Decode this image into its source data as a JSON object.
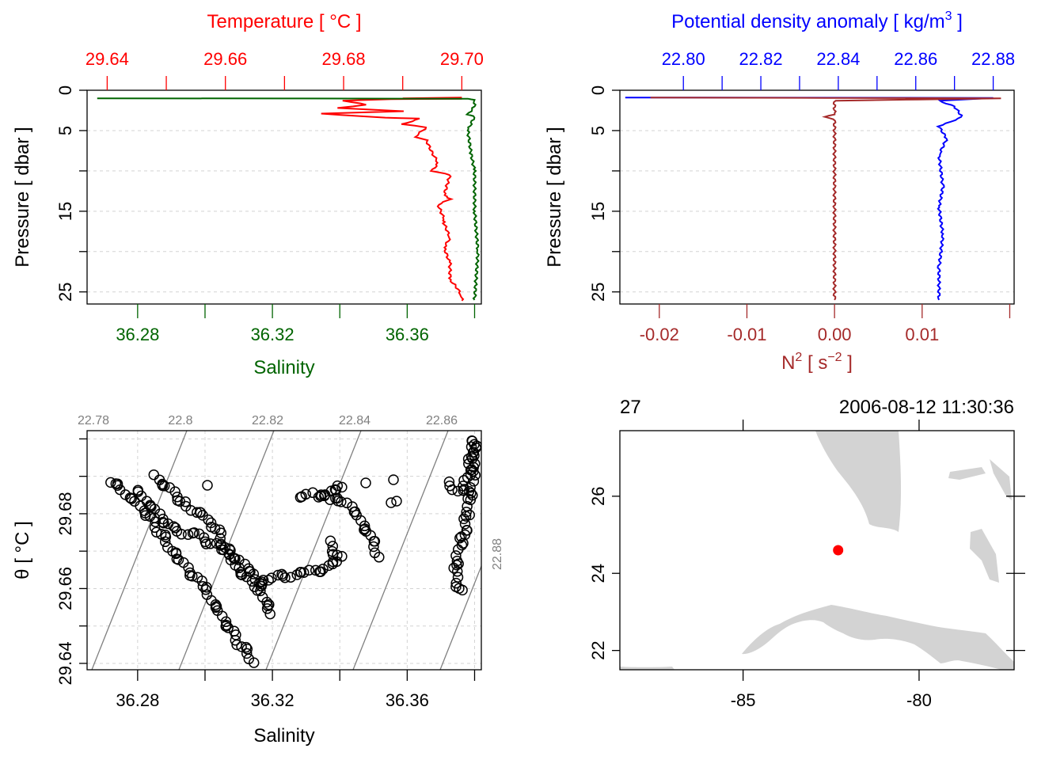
{
  "colors": {
    "temperature": "#ff0000",
    "salinity": "#006400",
    "density": "#0000ff",
    "n2": "#a52a2a",
    "land": "#d3d3d3",
    "station": "#ff0000",
    "grid": "#d3d3d3",
    "isopycnal": "#808080"
  },
  "chart_data": [
    {
      "id": "ts-profile",
      "type": "line",
      "top_axis": {
        "label_text": "Temperature [ °C ]",
        "ticks": [
          "29.64",
          "29.66",
          "29.68",
          "29.70"
        ],
        "range": [
          29.6366,
          29.7033
        ]
      },
      "bottom_axis": {
        "label": "Salinity",
        "ticks": [
          "36.28",
          "36.32",
          "36.36"
        ],
        "range": [
          36.265,
          36.382
        ]
      },
      "ylabel": "Pressure [ dbar ]",
      "yticks": [
        "0",
        "5",
        "15",
        "25"
      ],
      "ylim": [
        0,
        26.5
      ],
      "grid": true,
      "series": [
        {
          "role": "temperature",
          "points": [
            [
              29.7,
              0.9
            ],
            [
              29.69,
              1.0
            ],
            [
              29.7,
              1.05
            ],
            [
              29.688,
              1.1
            ],
            [
              29.68,
              1.3
            ],
            [
              29.684,
              1.8
            ],
            [
              29.679,
              2.2
            ],
            [
              29.69,
              2.6
            ],
            [
              29.676,
              2.9
            ],
            [
              29.687,
              3.4
            ],
            [
              29.693,
              3.5
            ],
            [
              29.69,
              4.2
            ],
            [
              29.694,
              4.6
            ],
            [
              29.692,
              5.8
            ],
            [
              29.694,
              6.2
            ],
            [
              29.695,
              7.8
            ],
            [
              29.696,
              9.0
            ],
            [
              29.695,
              10.0
            ],
            [
              29.698,
              10.5
            ],
            [
              29.697,
              13.0
            ],
            [
              29.698,
              13.5
            ],
            [
              29.696,
              14.2
            ],
            [
              29.697,
              16.0
            ],
            [
              29.697,
              16.5
            ],
            [
              29.698,
              18.3
            ],
            [
              29.697,
              19.5
            ],
            [
              29.698,
              21.5
            ],
            [
              29.698,
              23.5
            ],
            [
              29.699,
              24.3
            ],
            [
              29.7,
              25.5
            ],
            [
              29.7,
              26.1
            ]
          ]
        },
        {
          "role": "salinity",
          "points": [
            [
              36.268,
              1.0
            ],
            [
              36.378,
              1.05
            ],
            [
              36.38,
              1.2
            ],
            [
              36.38,
              2.0
            ],
            [
              36.378,
              3.0
            ],
            [
              36.38,
              3.2
            ],
            [
              36.378,
              5.0
            ],
            [
              36.379,
              8.0
            ],
            [
              36.38,
              10.0
            ],
            [
              36.38,
              15.0
            ],
            [
              36.381,
              20.0
            ],
            [
              36.38,
              26.0
            ]
          ]
        }
      ]
    },
    {
      "id": "density-profile",
      "type": "line",
      "top_axis": {
        "label_text": "Potential density anomaly [ kg/m",
        "label_sup": "3",
        "label_end": " ]",
        "ticks": [
          "22.80",
          "22.82",
          "22.84",
          "22.86",
          "22.88"
        ],
        "range": [
          22.7836,
          22.8854
        ]
      },
      "bottom_axis": {
        "label_text": "N",
        "label_sup": "2",
        "label_mid": " [ s",
        "label_sup2": "−2",
        "label_end": " ]",
        "ticks": [
          "-0.02",
          "-0.01",
          "0.00",
          "0.01"
        ],
        "range": [
          -0.0245,
          0.0205
        ]
      },
      "ylabel": "Pressure [ dbar ]",
      "yticks": [
        "0",
        "5",
        "15",
        "25"
      ],
      "ylim": [
        0,
        26.5
      ],
      "grid": true,
      "series": [
        {
          "role": "density",
          "points": [
            [
              22.785,
              0.9
            ],
            [
              22.88,
              0.95
            ],
            [
              22.866,
              1.3
            ],
            [
              22.87,
              2.0
            ],
            [
              22.872,
              3.3
            ],
            [
              22.866,
              4.5
            ],
            [
              22.868,
              6.0
            ],
            [
              22.866,
              8.0
            ],
            [
              22.867,
              12.0
            ],
            [
              22.866,
              14.5
            ],
            [
              22.867,
              18.0
            ],
            [
              22.866,
              22.0
            ],
            [
              22.866,
              26.0
            ]
          ]
        },
        {
          "role": "n2",
          "points": [
            [
              -0.021,
              0.9
            ],
            [
              0.019,
              1.0
            ],
            [
              0.0,
              1.3
            ],
            [
              0.0,
              3.0
            ],
            [
              -0.001,
              3.3
            ],
            [
              0.0,
              3.6
            ],
            [
              0.0,
              26.0
            ]
          ]
        }
      ]
    },
    {
      "id": "ts-diagram",
      "type": "scatter",
      "xlabel": "Salinity",
      "ylabel": "θ [ °C ]",
      "xticks": [
        "36.28",
        "36.32",
        "36.36"
      ],
      "yticks": [
        "29.64",
        "29.66",
        "29.68"
      ],
      "xlim": [
        36.265,
        36.382
      ],
      "ylim": [
        29.6383,
        29.7022
      ],
      "isopycnal_labels": [
        "22.78",
        "22.8",
        "22.82",
        "22.84",
        "22.86",
        "22.88"
      ],
      "grid": true,
      "segments": [
        [
          [
            36.272,
            29.689
          ],
          [
            36.283,
            29.68
          ],
          [
            36.292,
            29.668
          ],
          [
            36.3,
            29.66
          ],
          [
            36.308,
            29.648
          ],
          [
            36.315,
            29.64
          ]
        ],
        [
          [
            36.28,
            29.686
          ],
          [
            36.29,
            29.676
          ],
          [
            36.298,
            29.674
          ],
          [
            36.306,
            29.67
          ],
          [
            36.315,
            29.664
          ],
          [
            36.32,
            29.652
          ]
        ],
        [
          [
            36.285,
            29.69
          ],
          [
            36.295,
            29.682
          ],
          [
            36.302,
            29.678
          ],
          [
            36.31,
            29.665
          ],
          [
            36.315,
            29.66
          ],
          [
            36.32,
            29.663
          ],
          [
            36.33,
            29.664
          ],
          [
            36.338,
            29.666
          ],
          [
            36.34,
            29.668
          ],
          [
            36.336,
            29.673
          ]
        ],
        [
          [
            36.328,
            29.685
          ],
          [
            36.333,
            29.685
          ],
          [
            36.337,
            29.684
          ],
          [
            36.341,
            29.683
          ],
          [
            36.345,
            29.68
          ],
          [
            36.35,
            29.672
          ],
          [
            36.352,
            29.668
          ]
        ],
        [
          [
            36.336,
            29.685
          ],
          [
            36.34,
            29.687
          ],
          [
            36.342,
            29.686
          ]
        ],
        [
          [
            36.372,
            29.688
          ],
          [
            36.376,
            29.686
          ],
          [
            36.378,
            29.69
          ],
          [
            36.38,
            29.7
          ],
          [
            36.38,
            29.693
          ],
          [
            36.378,
            29.68
          ],
          [
            36.376,
            29.672
          ],
          [
            36.374,
            29.665
          ],
          [
            36.376,
            29.658
          ]
        ]
      ]
    },
    {
      "id": "station-map",
      "type": "map",
      "station_id": "27",
      "datetime": "2006-08-12 11:30:36",
      "xticks": [
        "-85",
        "-80"
      ],
      "yticks": [
        "22",
        "24",
        "26"
      ],
      "xlim": [
        -88.5,
        -77.3
      ],
      "ylim": [
        21.5,
        27.7
      ],
      "station": {
        "lon": -82.3,
        "lat": 24.6
      }
    }
  ]
}
